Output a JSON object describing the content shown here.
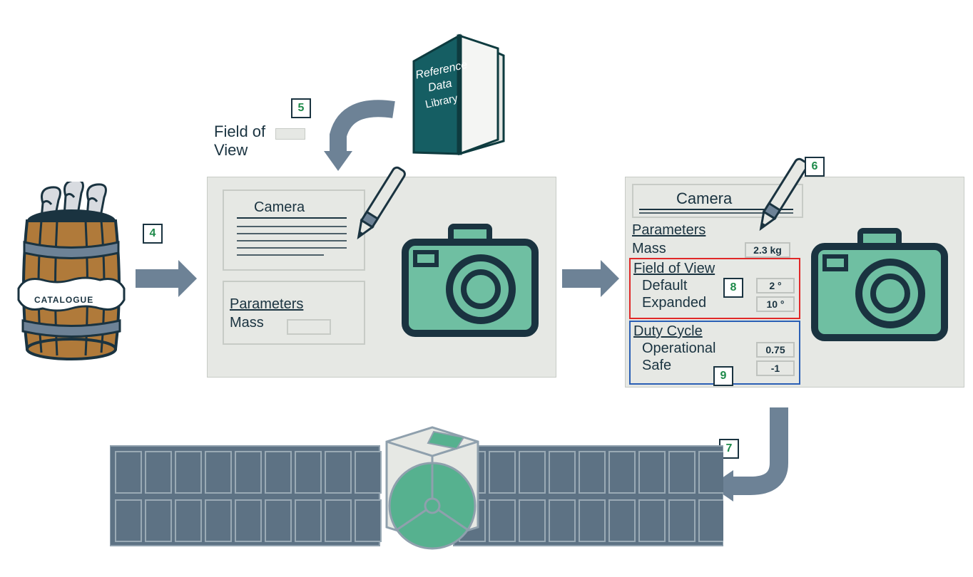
{
  "colors": {
    "bg": "#ffffff",
    "panel": "#e6e8e4",
    "panelBorder": "#c7cbc6",
    "arrow": "#6d8296",
    "dark": "#1a3340",
    "accentGreen": "#56b18f",
    "cameraTeal": "#6fbfa2",
    "barrelWood": "#b07a3a",
    "barrelBand": "#6d8296",
    "bookTeal": "#155e63",
    "stepNumColor": "#1e8a4a",
    "redBox": "#e02828",
    "blueBox": "#2a5fb5",
    "slate": "#5d7284"
  },
  "steps": {
    "s4": "4",
    "s5": "5",
    "s6": "6",
    "s7": "7",
    "s8": "8",
    "s9": "9"
  },
  "catalogue": {
    "label": "CATALOGUE"
  },
  "book": {
    "line1": "Reference",
    "line2": "Data",
    "line3": "Library"
  },
  "fov_tag": {
    "label1": "Field of",
    "label2": "View"
  },
  "panel1": {
    "cameraTitle": "Camera",
    "parametersLabel": "Parameters",
    "massLabel": "Mass"
  },
  "panel2": {
    "cameraTitle": "Camera",
    "parametersLabel": "Parameters",
    "massLabel": "Mass",
    "massValue": "2.3 kg",
    "fovLabel": "Field of View",
    "fovDefaultLabel": "Default",
    "fovDefaultValue": "2 °",
    "fovExpandedLabel": "Expanded",
    "fovExpandedValue": "10 °",
    "dutyLabel": "Duty Cycle",
    "dutyOpLabel": "Operational",
    "dutyOpValue": "0.75",
    "dutySafeLabel": "Safe",
    "dutySafeValue": "-1"
  },
  "satellite": {
    "panelCols": 9,
    "panelRows": 2
  }
}
